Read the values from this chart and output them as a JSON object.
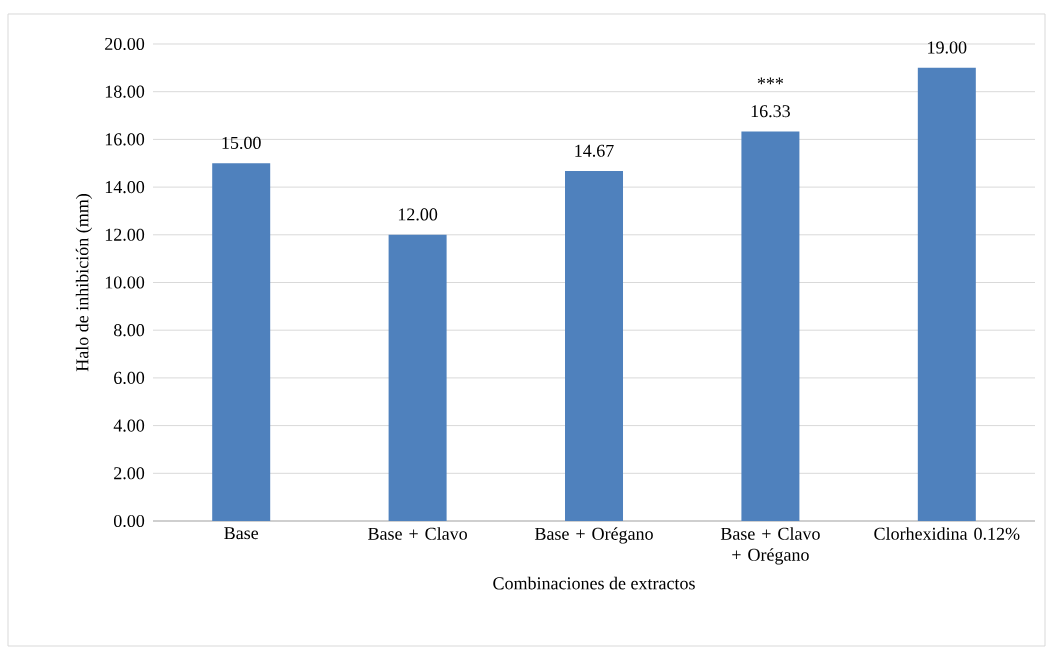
{
  "chart_data": {
    "type": "bar",
    "xlabel": "Combinaciones de extractos",
    "ylabel": "Halo de inhibición (mm)",
    "categories": [
      "Base",
      "Base + Clavo",
      "Base + Orégano",
      "Base + Clavo + Orégano",
      "Clorhexidina 0.12%"
    ],
    "values": [
      15.0,
      12.0,
      14.67,
      16.33,
      19.0
    ],
    "value_labels": [
      "15.00",
      "12.00",
      "14.67",
      "16.33",
      "19.00"
    ],
    "color": "#4f81bd",
    "ylim": [
      0,
      20
    ],
    "yticks": [
      {
        "value": 0,
        "label": "0.00"
      },
      {
        "value": 2,
        "label": "2.00"
      },
      {
        "value": 4,
        "label": "4.00"
      },
      {
        "value": 6,
        "label": "6.00"
      },
      {
        "value": 8,
        "label": "8.00"
      },
      {
        "value": 10,
        "label": "10.00"
      },
      {
        "value": 12,
        "label": "12.00"
      },
      {
        "value": 14,
        "label": "14.00"
      },
      {
        "value": 16,
        "label": "16.00"
      },
      {
        "value": 18,
        "label": "18.00"
      },
      {
        "value": 20,
        "label": "20.00"
      }
    ],
    "grid": "y",
    "annotations": [
      {
        "text": "***",
        "x": "Base + Clavo + Orégano",
        "y": 16.33
      }
    ]
  }
}
